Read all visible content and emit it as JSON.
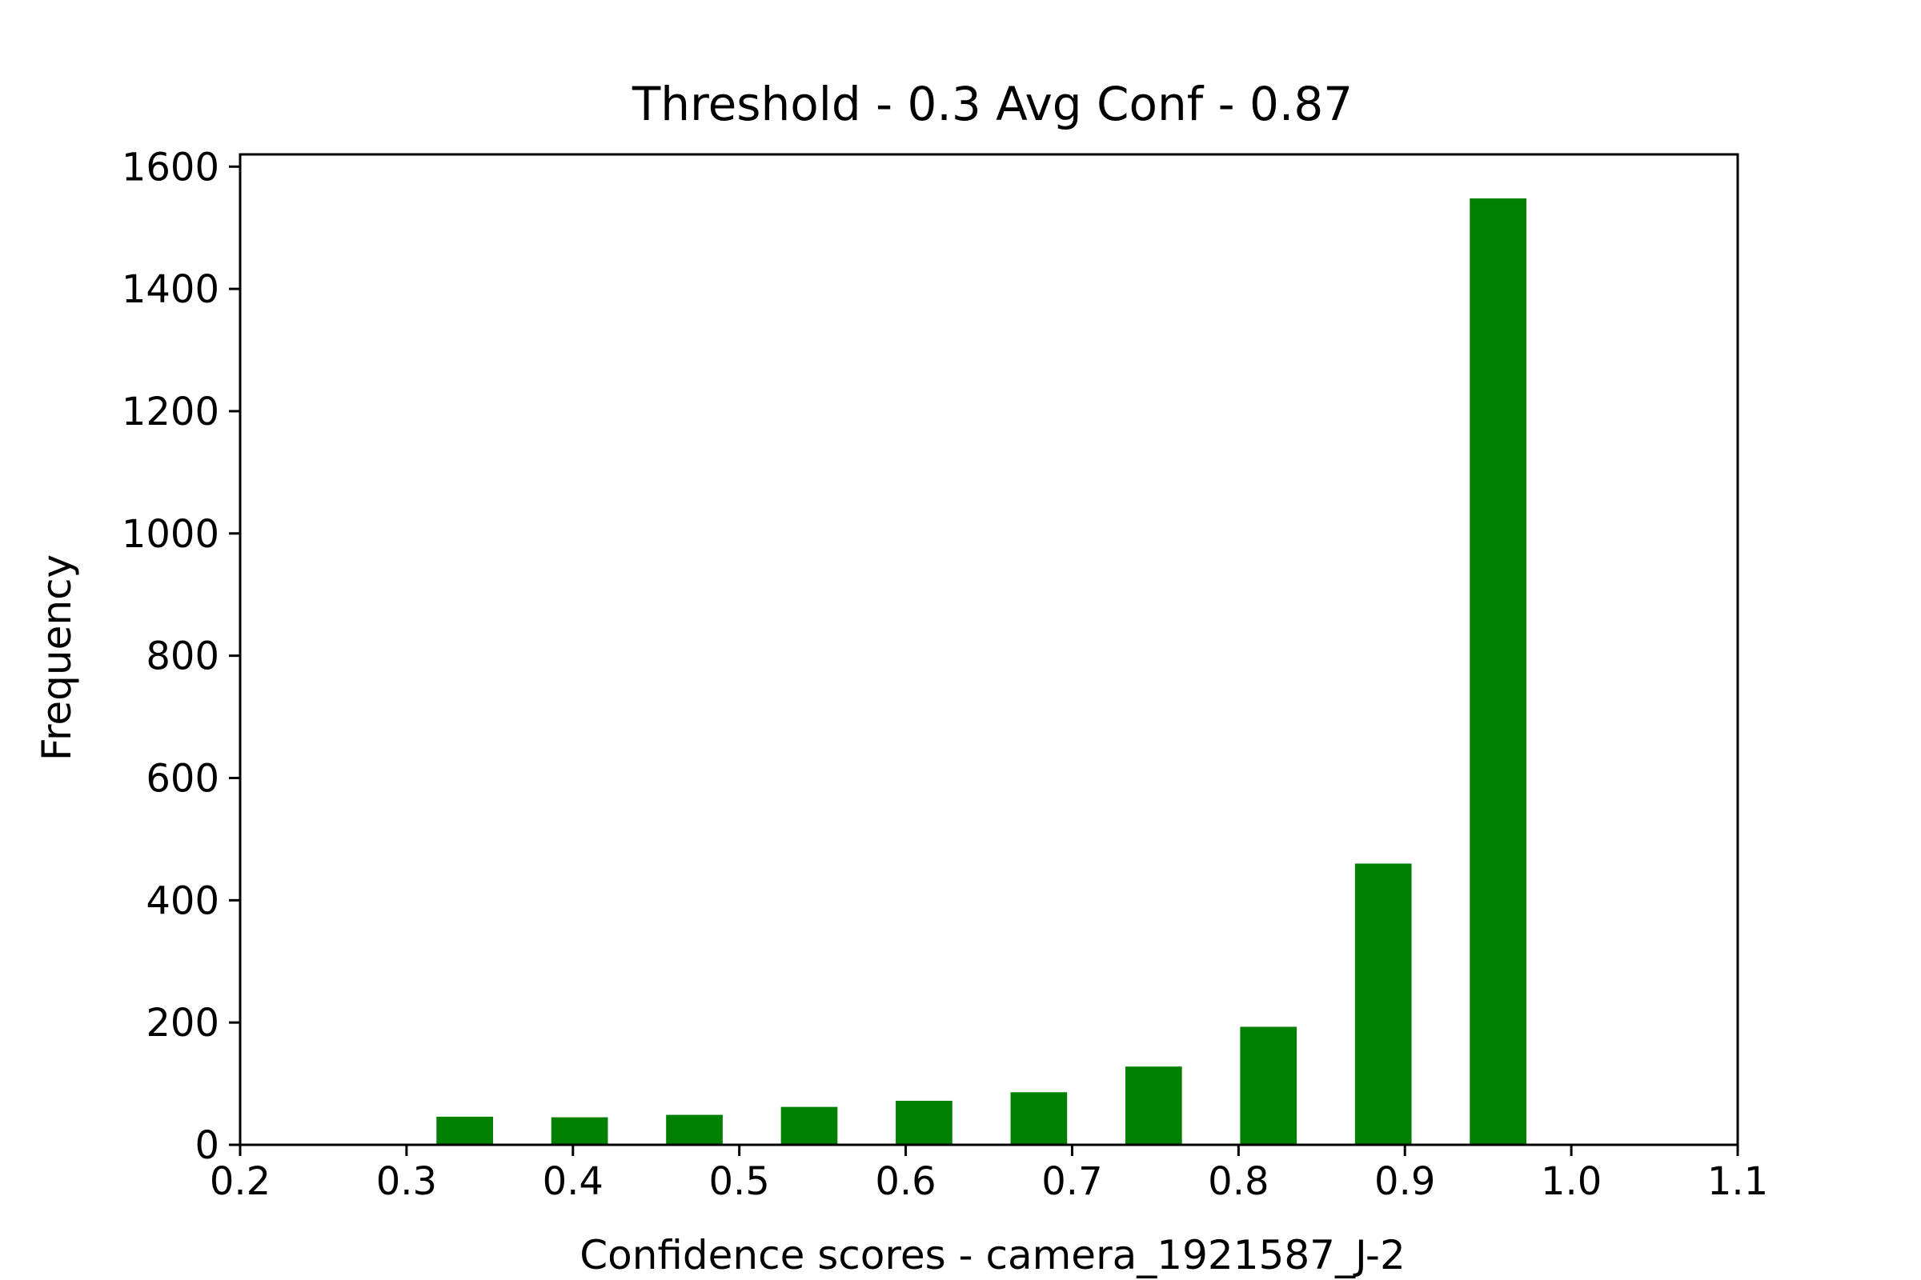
{
  "chart_data": {
    "type": "bar",
    "title": "Threshold - 0.3 Avg Conf - 0.87",
    "xlabel": "Confidence scores - camera_1921587_J-2",
    "ylabel": "Frequency",
    "xlim": [
      0.2,
      1.1
    ],
    "ylim": [
      0,
      1620
    ],
    "xticks": [
      "0.2",
      "0.3",
      "0.4",
      "0.5",
      "0.6",
      "0.7",
      "0.8",
      "0.9",
      "1.0",
      "1.1"
    ],
    "yticks": [
      "0",
      "200",
      "400",
      "600",
      "800",
      "1000",
      "1200",
      "1400",
      "1600"
    ],
    "bars": [
      {
        "x0": 0.318,
        "x1": 0.352,
        "value": 46
      },
      {
        "x0": 0.387,
        "x1": 0.421,
        "value": 45
      },
      {
        "x0": 0.456,
        "x1": 0.49,
        "value": 49
      },
      {
        "x0": 0.525,
        "x1": 0.559,
        "value": 62
      },
      {
        "x0": 0.594,
        "x1": 0.628,
        "value": 72
      },
      {
        "x0": 0.663,
        "x1": 0.697,
        "value": 86
      },
      {
        "x0": 0.732,
        "x1": 0.766,
        "value": 128
      },
      {
        "x0": 0.801,
        "x1": 0.835,
        "value": 193
      },
      {
        "x0": 0.87,
        "x1": 0.904,
        "value": 460
      },
      {
        "x0": 0.939,
        "x1": 0.973,
        "value": 1548
      }
    ],
    "color": "#008000",
    "grid": false,
    "legend": "none"
  }
}
